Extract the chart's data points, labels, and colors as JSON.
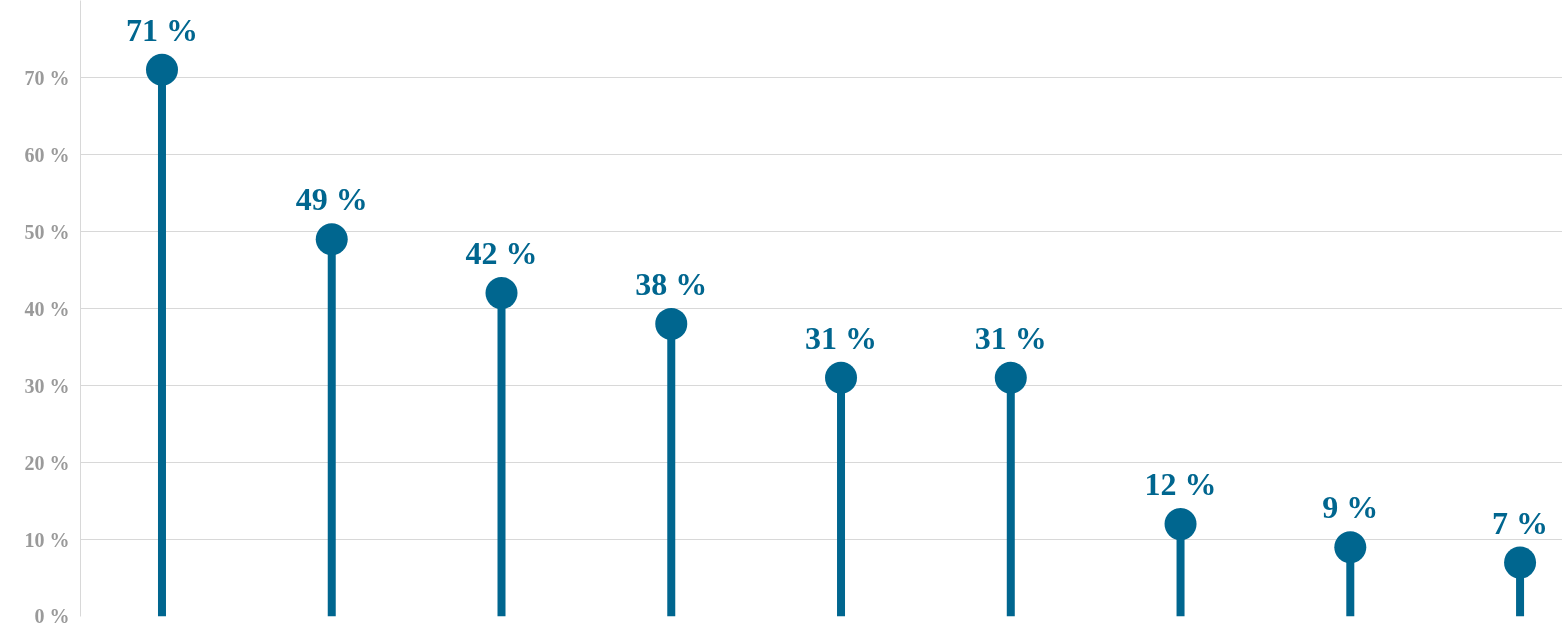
{
  "chart_data": {
    "type": "lollipop",
    "categories": [
      null,
      null,
      null,
      null,
      null,
      null,
      null,
      null,
      null
    ],
    "series": [
      {
        "color": "#00668f",
        "values": [
          71,
          49,
          42,
          38,
          31,
          31,
          12,
          9,
          7
        ],
        "value_labels": [
          "71 %",
          "49 %",
          "42 %",
          "38 %",
          "31 %",
          "31 %",
          "12 %",
          "9 %",
          "7 %"
        ]
      }
    ],
    "ylim": [
      0,
      80
    ],
    "yticks": [
      {
        "value": 0,
        "label": "0 %"
      },
      {
        "value": 10,
        "label": "10 %"
      },
      {
        "value": 20,
        "label": "20 %"
      },
      {
        "value": 30,
        "label": "30 %"
      },
      {
        "value": 40,
        "label": "40 %"
      },
      {
        "value": 50,
        "label": "50 %"
      },
      {
        "value": 60,
        "label": "60 %"
      },
      {
        "value": 70,
        "label": "70 %"
      }
    ],
    "grid": "y",
    "marker": "circle",
    "tick_labels": "y"
  }
}
